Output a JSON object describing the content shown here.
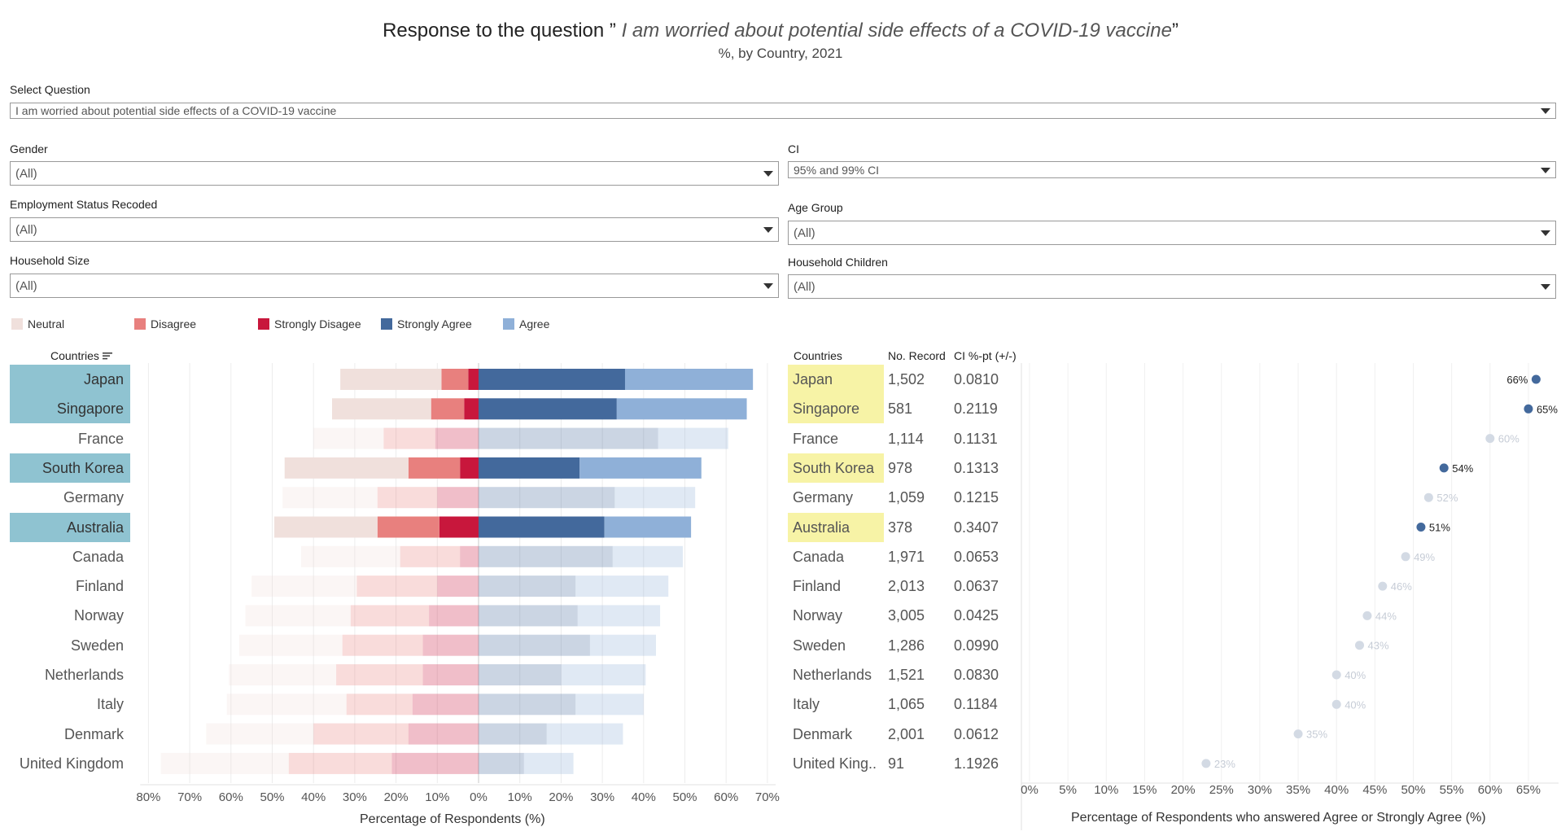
{
  "header": {
    "title_prefix": "Response to the question ” ",
    "title_question": "I am worried about potential side effects of a COVID-19 vaccine",
    "title_suffix": "”",
    "subtitle": "%, by Country, 2021"
  },
  "filters": {
    "select_question": {
      "label": "Select Question",
      "value": "I am worried about potential side effects of a COVID-19 vaccine"
    },
    "gender": {
      "label": "Gender",
      "value": "(All)"
    },
    "ci": {
      "label": "CI",
      "value": "95% and 99% CI"
    },
    "employment": {
      "label": "Employment Status Recoded",
      "value": "(All)"
    },
    "age_group": {
      "label": "Age Group",
      "value": "(All)"
    },
    "household_size": {
      "label": "Household Size",
      "value": "(All)"
    },
    "household_children": {
      "label": "Household Children",
      "value": "(All)"
    }
  },
  "legend": {
    "items": [
      {
        "label": "Neutral",
        "color": "#f0e0dc"
      },
      {
        "label": "Disagree",
        "color": "#e8807e"
      },
      {
        "label": "Strongly Disagee",
        "color": "#c8173c"
      },
      {
        "label": "Strongly Agree",
        "color": "#43699c"
      },
      {
        "label": "Agree",
        "color": "#8fb0d8"
      }
    ]
  },
  "table": {
    "countries_header": "Countries",
    "records_header": "No. Record",
    "ci_header": "CI %-pt (+/-)",
    "rows": [
      {
        "country": "Japan",
        "records": "1,502",
        "ci": "0.0810",
        "highlight": true
      },
      {
        "country": "Singapore",
        "records": "581",
        "ci": "0.2119",
        "highlight": true
      },
      {
        "country": "France",
        "records": "1,114",
        "ci": "0.1131",
        "highlight": false
      },
      {
        "country": "South Korea",
        "records": "978",
        "ci": "0.1313",
        "highlight": true
      },
      {
        "country": "Germany",
        "records": "1,059",
        "ci": "0.1215",
        "highlight": false
      },
      {
        "country": "Australia",
        "records": "378",
        "ci": "0.3407",
        "highlight": true
      },
      {
        "country": "Canada",
        "records": "1,971",
        "ci": "0.0653",
        "highlight": false
      },
      {
        "country": "Finland",
        "records": "2,013",
        "ci": "0.0637",
        "highlight": false
      },
      {
        "country": "Norway",
        "records": "3,005",
        "ci": "0.0425",
        "highlight": false
      },
      {
        "country": "Sweden",
        "records": "1,286",
        "ci": "0.0990",
        "highlight": false
      },
      {
        "country": "Netherlands",
        "records": "1,521",
        "ci": "0.0830",
        "highlight": false
      },
      {
        "country": "Italy",
        "records": "1,065",
        "ci": "0.1184",
        "highlight": false
      },
      {
        "country": "Denmark",
        "records": "2,001",
        "ci": "0.0612",
        "highlight": false
      },
      {
        "country": "United King..",
        "records": "91",
        "ci": "1.1926",
        "highlight": false
      }
    ]
  },
  "chart_data": [
    {
      "type": "bar",
      "subtype": "diverging-stacked",
      "title": "",
      "countries_label": "Countries",
      "xlabel": "Percentage of Respondents (%)",
      "ylabel": "Countries",
      "xlim": [
        -80,
        70
      ],
      "x_ticks": [
        "80%",
        "70%",
        "60%",
        "50%",
        "40%",
        "30%",
        "20%",
        "10%",
        "0%",
        "10%",
        "20%",
        "30%",
        "40%",
        "50%",
        "60%",
        "70%"
      ],
      "categories": [
        "Japan",
        "Singapore",
        "France",
        "South Korea",
        "Germany",
        "Australia",
        "Canada",
        "Finland",
        "Norway",
        "Sweden",
        "Netherlands",
        "Italy",
        "Denmark",
        "United Kingdom"
      ],
      "highlighted": [
        "Japan",
        "Singapore",
        "South Korea",
        "Australia"
      ],
      "series": [
        {
          "name": "Strongly Disagee",
          "side": "negative",
          "values": [
            2.5,
            3.5,
            10.5,
            4.5,
            10,
            9.5,
            4.5,
            10,
            12,
            13.5,
            13.5,
            16,
            17,
            21
          ]
        },
        {
          "name": "Disagree",
          "side": "negative",
          "values": [
            6.5,
            8,
            12.5,
            12.5,
            14.5,
            15,
            14.5,
            19.5,
            19,
            19.5,
            21,
            16,
            23,
            25
          ]
        },
        {
          "name": "Neutral",
          "side": "negative",
          "values": [
            24.5,
            24,
            17,
            30,
            23,
            25,
            24,
            25.5,
            25.5,
            25,
            26,
            29,
            26,
            31
          ]
        },
        {
          "name": "Strongly Agree",
          "side": "positive",
          "values": [
            35.5,
            33.5,
            43.5,
            24.5,
            33,
            30.5,
            32.5,
            23.5,
            24,
            27,
            20,
            23.5,
            16.5,
            11
          ]
        },
        {
          "name": "Agree",
          "side": "positive",
          "values": [
            31,
            31.5,
            17,
            29.5,
            19.5,
            21,
            17,
            22.5,
            20,
            16,
            20.5,
            16.5,
            18.5,
            12
          ]
        }
      ]
    },
    {
      "type": "scatter",
      "subtype": "dot-plot",
      "xlabel": "Percentage of Respondents who answered Agree or Strongly Agree (%)",
      "xlim": [
        0,
        70
      ],
      "x_ticks": [
        "0%",
        "5%",
        "10%",
        "15%",
        "20%",
        "25%",
        "30%",
        "35%",
        "40%",
        "45%",
        "50%",
        "55%",
        "60%",
        "65%"
      ],
      "categories": [
        "Japan",
        "Singapore",
        "France",
        "South Korea",
        "Germany",
        "Australia",
        "Canada",
        "Finland",
        "Norway",
        "Sweden",
        "Netherlands",
        "Italy",
        "Denmark",
        "United Kingdom"
      ],
      "values": [
        66,
        65,
        60,
        54,
        52,
        51,
        49,
        46,
        44,
        43,
        40,
        40,
        35,
        23
      ],
      "labels": [
        "66%",
        "65%",
        "60%",
        "54%",
        "52%",
        "51%",
        "49%",
        "46%",
        "44%",
        "43%",
        "40%",
        "40%",
        "35%",
        "23%"
      ],
      "highlighted": [
        "Japan",
        "Singapore",
        "South Korea",
        "Australia"
      ]
    }
  ]
}
